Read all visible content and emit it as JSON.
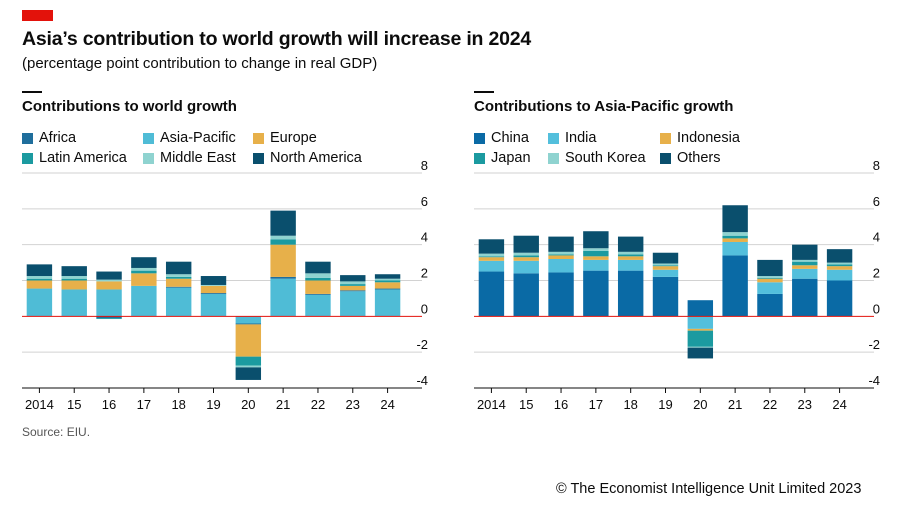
{
  "header": {
    "title": "Asia’s contribution to world growth will increase in 2024",
    "subtitle": "(percentage point contribution to change in real GDP)"
  },
  "colors": {
    "brand_red": "#e3120b",
    "africa": "#1f6e9c",
    "asia_pacific": "#4fbcd6",
    "europe": "#e7b04a",
    "latin_america": "#1b9aa0",
    "middle_east": "#8fd3d0",
    "north_america": "#0a4f6d",
    "china": "#0a6aa5",
    "india": "#53bfdc",
    "indonesia": "#e7b04a",
    "japan": "#1b9aa0",
    "south_korea": "#8fd3d0",
    "others": "#0a4f6d",
    "zero_line": "#e3120b"
  },
  "footer": {
    "source": "Source: EIU.",
    "copyright": "© The Economist Intelligence Unit Limited 2023"
  },
  "chart_data": [
    {
      "type": "bar",
      "stacked": true,
      "title": "Contributions to world growth",
      "categories": [
        "2014",
        "15",
        "16",
        "17",
        "18",
        "19",
        "20",
        "21",
        "22",
        "23",
        "24"
      ],
      "ylim": [
        -4,
        8
      ],
      "yticks": [
        "8",
        "6",
        "4",
        "2",
        "0",
        "-2",
        "-4"
      ],
      "legend": [
        "Africa",
        "Asia-Pacific",
        "Europe",
        "Latin America",
        "Middle East",
        "North America"
      ],
      "series": [
        {
          "name": "Asia-Pacific",
          "key": "asia_pacific",
          "values": [
            1.55,
            1.5,
            1.5,
            1.7,
            1.6,
            1.25,
            -0.4,
            2.1,
            1.2,
            1.4,
            1.5
          ]
        },
        {
          "name": "Africa",
          "key": "africa",
          "values": [
            0.0,
            0.0,
            -0.1,
            0.0,
            0.05,
            0.05,
            -0.05,
            0.1,
            0.05,
            0.05,
            0.05
          ]
        },
        {
          "name": "Europe",
          "key": "europe",
          "values": [
            0.45,
            0.5,
            0.45,
            0.7,
            0.45,
            0.4,
            -1.8,
            1.8,
            0.75,
            0.25,
            0.35
          ]
        },
        {
          "name": "Latin America",
          "key": "latin_america",
          "values": [
            0.1,
            0.1,
            -0.05,
            0.15,
            0.1,
            0.0,
            -0.5,
            0.3,
            0.15,
            0.1,
            0.1
          ]
        },
        {
          "name": "Middle East",
          "key": "middle_east",
          "values": [
            0.15,
            0.15,
            0.1,
            0.15,
            0.15,
            0.05,
            -0.1,
            0.2,
            0.25,
            0.15,
            0.1
          ]
        },
        {
          "name": "North America",
          "key": "north_america",
          "values": [
            0.65,
            0.55,
            0.45,
            0.6,
            0.7,
            0.5,
            -0.7,
            1.4,
            0.65,
            0.35,
            0.25
          ]
        }
      ]
    },
    {
      "type": "bar",
      "stacked": true,
      "title": "Contributions to Asia-Pacific growth",
      "categories": [
        "2014",
        "15",
        "16",
        "17",
        "18",
        "19",
        "20",
        "21",
        "22",
        "23",
        "24"
      ],
      "ylim": [
        -4,
        8
      ],
      "yticks": [
        "8",
        "6",
        "4",
        "2",
        "0",
        "-2",
        "-4"
      ],
      "legend": [
        "China",
        "India",
        "Indonesia",
        "Japan",
        "South Korea",
        "Others"
      ],
      "series": [
        {
          "name": "China",
          "key": "china",
          "values": [
            2.5,
            2.4,
            2.45,
            2.55,
            2.55,
            2.2,
            0.9,
            3.4,
            1.25,
            2.1,
            2.0
          ]
        },
        {
          "name": "India",
          "key": "india",
          "values": [
            0.6,
            0.7,
            0.75,
            0.6,
            0.6,
            0.4,
            -0.7,
            0.75,
            0.65,
            0.55,
            0.6
          ]
        },
        {
          "name": "Indonesia",
          "key": "indonesia",
          "values": [
            0.2,
            0.2,
            0.2,
            0.2,
            0.2,
            0.2,
            -0.1,
            0.2,
            0.2,
            0.2,
            0.2
          ]
        },
        {
          "name": "Japan",
          "key": "japan",
          "values": [
            0.05,
            0.1,
            0.05,
            0.3,
            0.1,
            0.05,
            -0.9,
            0.15,
            0.05,
            0.2,
            0.1
          ]
        },
        {
          "name": "South Korea",
          "key": "south_korea",
          "values": [
            0.15,
            0.15,
            0.15,
            0.15,
            0.15,
            0.1,
            -0.05,
            0.2,
            0.1,
            0.1,
            0.1
          ]
        },
        {
          "name": "Others",
          "key": "others",
          "values": [
            0.8,
            0.95,
            0.85,
            0.95,
            0.85,
            0.6,
            -0.6,
            1.5,
            0.9,
            0.85,
            0.75
          ]
        }
      ]
    }
  ]
}
